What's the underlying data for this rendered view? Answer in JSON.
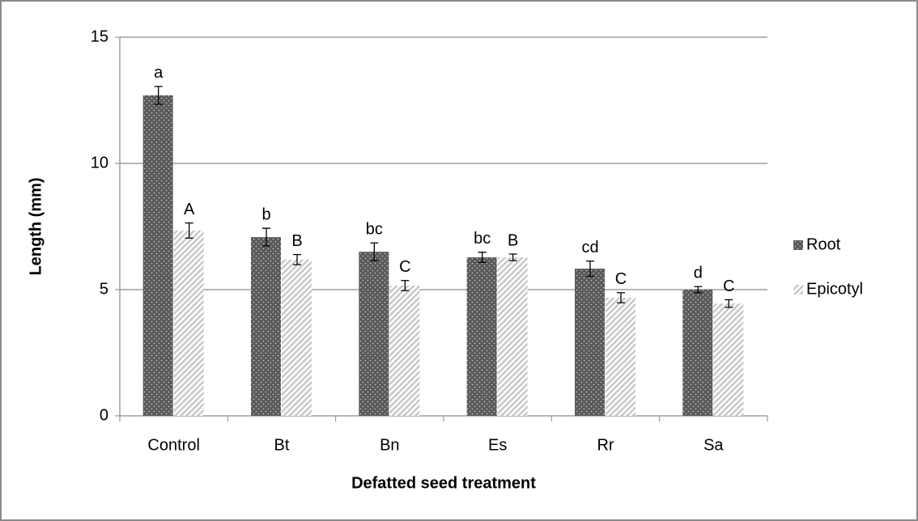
{
  "chart_data": {
    "type": "bar",
    "x_label": "Defatted seed treatment",
    "y_label": "Length (mm)",
    "categories": [
      "Control",
      "Bt",
      "Bn",
      "Es",
      "Rr",
      "Sa"
    ],
    "series": [
      {
        "name": "Root",
        "color": "#5a5a5a",
        "pattern": "dots",
        "values": [
          12.7,
          7.08,
          6.5,
          6.28,
          5.83,
          5.0
        ],
        "errors": [
          0.35,
          0.35,
          0.35,
          0.2,
          0.3,
          0.12
        ],
        "letters": [
          "a",
          "b",
          "bc",
          "bc",
          "cd",
          "d"
        ]
      },
      {
        "name": "Epicotyl",
        "color": "#c8c8c8",
        "pattern": "hatch",
        "values": [
          7.34,
          6.19,
          5.16,
          6.28,
          4.68,
          4.45
        ],
        "errors": [
          0.3,
          0.2,
          0.2,
          0.13,
          0.2,
          0.15
        ],
        "letters": [
          "A",
          "B",
          "C",
          "B",
          "C",
          "C"
        ]
      }
    ],
    "ylim": [
      0,
      15
    ],
    "yticks": [
      0,
      5,
      10,
      15
    ],
    "grid": true,
    "legend": "right"
  }
}
